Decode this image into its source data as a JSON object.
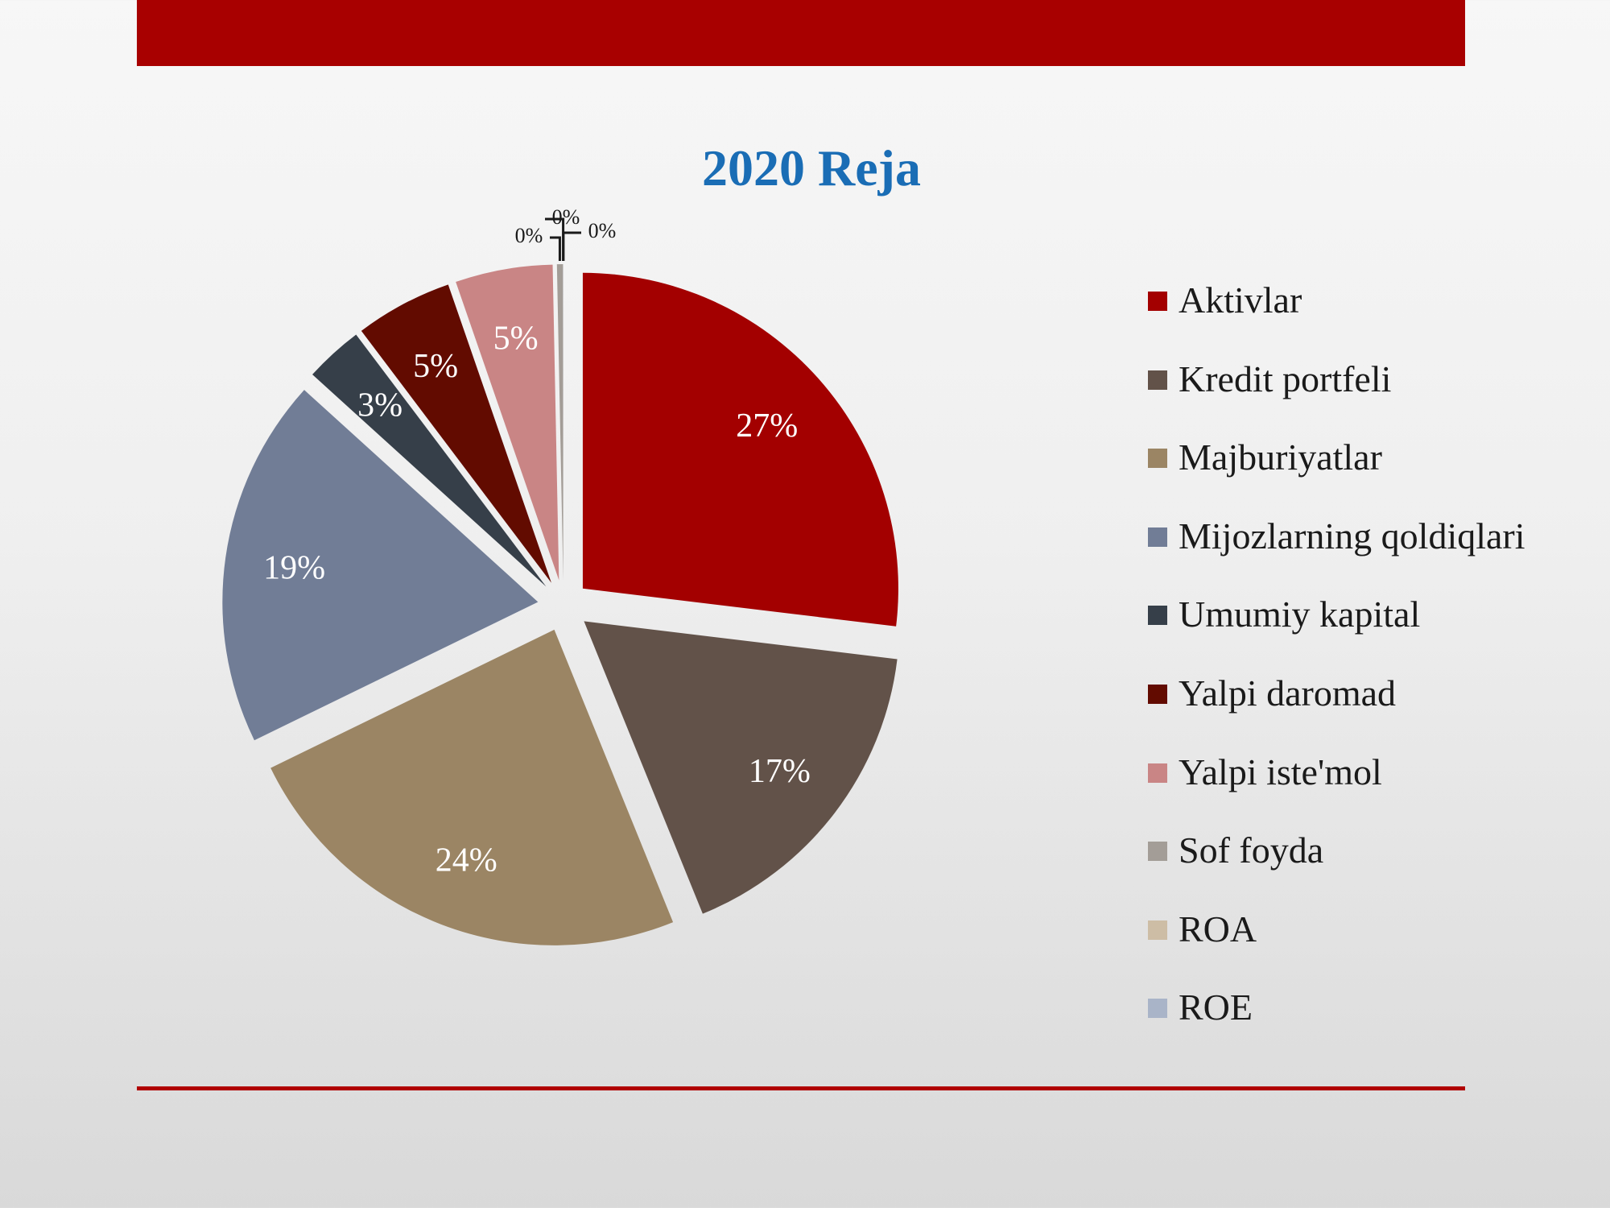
{
  "chart_data": {
    "type": "pie",
    "title": "2020 Reja",
    "categories": [
      "Aktivlar",
      "Kredit portfeli",
      "Majburiyatlar",
      "Mijozlarning qoldiqlari",
      "Umumiy kapital",
      "Yalpi daromad",
      "Yalpi iste'mol",
      "Sof foyda",
      "ROA",
      "ROE"
    ],
    "values": [
      27,
      17,
      24,
      19,
      3,
      5,
      5,
      0.3,
      0.01,
      0.01
    ],
    "data_labels": [
      "27%",
      "17%",
      "24%",
      "19%",
      "3%",
      "5%",
      "5%",
      "0%",
      "0%",
      "0%"
    ],
    "colors": [
      "#a30000",
      "#625249",
      "#9b8564",
      "#717d96",
      "#363f49",
      "#620b00",
      "#c98585",
      "#a39d97",
      "#cdbda5",
      "#a9b4c8"
    ],
    "exploded": true,
    "legend_position": "right"
  }
}
